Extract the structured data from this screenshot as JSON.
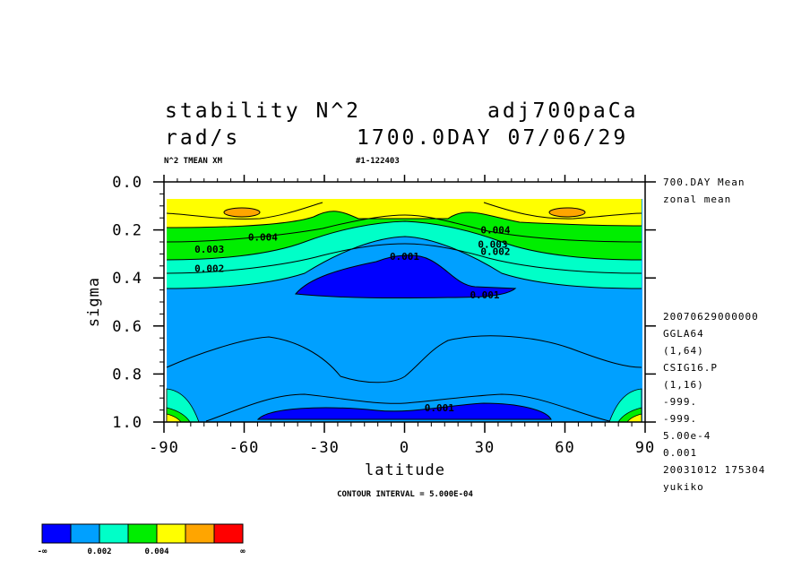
{
  "header": {
    "title_left": "stability N^2",
    "title_right": "adj700paCa",
    "units": "rad/s",
    "date_line": "1700.0DAY 07/06/29",
    "var_line": "N^2 TMEAN XM",
    "run_id": "#1-122403"
  },
  "right_info": {
    "lines_top": [
      "700.DAY Mean",
      "zonal mean"
    ],
    "lines_bottom": [
      "20070629000000",
      "GGLA64",
      "(1,64)",
      "CSIG16.P",
      "(1,16)",
      "-999.",
      "-999.",
      "5.00e-4",
      "0.001",
      "20031012 175304",
      "yukiko"
    ]
  },
  "footer": {
    "contour_interval": "CONTOUR INTERVAL = 5.000E-04"
  },
  "chart_data": {
    "type": "heatmap",
    "subtype": "filled-contour",
    "xlabel": "latitude",
    "ylabel": "sigma",
    "xlim": [
      -90,
      90
    ],
    "ylim": [
      1.0,
      0.0
    ],
    "x_ticks": [
      "-90",
      "-60",
      "-30",
      "0",
      "30",
      "60",
      "90"
    ],
    "y_ticks": [
      "0.0",
      "0.2",
      "0.4",
      "0.6",
      "0.8",
      "1.0"
    ],
    "contour_interval": 0.0005,
    "contour_labels": [
      {
        "text": "0.004",
        "lat": -53,
        "sigma": 0.23
      },
      {
        "text": "0.003",
        "lat": -73,
        "sigma": 0.28
      },
      {
        "text": "0.002",
        "lat": -73,
        "sigma": 0.36
      },
      {
        "text": "0.001",
        "lat": 0,
        "sigma": 0.31
      },
      {
        "text": "0.004",
        "lat": 34,
        "sigma": 0.2
      },
      {
        "text": "0.003",
        "lat": 33,
        "sigma": 0.26
      },
      {
        "text": "0.002",
        "lat": 34,
        "sigma": 0.29
      },
      {
        "text": "0.001",
        "lat": 30,
        "sigma": 0.47
      },
      {
        "text": "0.001",
        "lat": 13,
        "sigma": 0.94
      }
    ],
    "colorbar": {
      "colors": [
        "#0000ff",
        "#00a0ff",
        "#00ffc8",
        "#00ee00",
        "#ffff00",
        "#ffa500",
        "#ff0000"
      ],
      "labels": [
        "-∞",
        "0.002",
        "0.004",
        "∞"
      ]
    }
  }
}
